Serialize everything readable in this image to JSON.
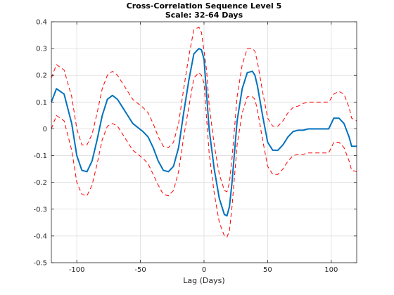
{
  "chart_data": {
    "type": "line",
    "title": "Cross-Correlation Sequence Level 5",
    "subtitle": "Scale: 32-64 Days",
    "xlabel": "Lag (Days)",
    "ylabel": "",
    "xlim": [
      -120,
      120
    ],
    "ylim": [
      -0.5,
      0.4
    ],
    "xticks": [
      -100,
      -50,
      0,
      50,
      100
    ],
    "yticks": [
      -0.5,
      -0.4,
      -0.3,
      -0.2,
      -0.1,
      0,
      0.1,
      0.2,
      0.3,
      0.4
    ],
    "xtick_labels": [
      "-100",
      "-50",
      "0",
      "50",
      "100"
    ],
    "ytick_labels": [
      "-0.5",
      "-0.4",
      "-0.3",
      "-0.2",
      "-0.1",
      "0",
      "0.1",
      "0.2",
      "0.3",
      "0.4"
    ],
    "grid": true,
    "series": [
      {
        "style": "solid",
        "color": "#0072bd",
        "x": [
          -120,
          -116,
          -110,
          -104,
          -100,
          -96,
          -92,
          -88,
          -84,
          -80,
          -76,
          -72,
          -68,
          -64,
          -60,
          -56,
          -52,
          -48,
          -44,
          -40,
          -36,
          -32,
          -28,
          -24,
          -20,
          -16,
          -12,
          -8,
          -4,
          -2,
          0,
          2,
          4,
          8,
          12,
          16,
          18,
          20,
          22,
          26,
          30,
          34,
          38,
          40,
          42,
          46,
          50,
          54,
          58,
          62,
          66,
          70,
          74,
          78,
          82,
          86,
          90,
          94,
          98,
          102,
          106,
          110,
          114,
          116,
          120
        ],
        "y": [
          0.1,
          0.15,
          0.13,
          0.02,
          -0.1,
          -0.155,
          -0.16,
          -0.12,
          -0.04,
          0.05,
          0.11,
          0.125,
          0.11,
          0.08,
          0.05,
          0.02,
          0.005,
          -0.01,
          -0.03,
          -0.07,
          -0.12,
          -0.155,
          -0.16,
          -0.14,
          -0.07,
          0.06,
          0.18,
          0.28,
          0.3,
          0.295,
          0.26,
          0.13,
          0.0,
          -0.15,
          -0.26,
          -0.32,
          -0.325,
          -0.29,
          -0.2,
          0.03,
          0.15,
          0.21,
          0.215,
          0.2,
          0.16,
          0.05,
          -0.05,
          -0.08,
          -0.08,
          -0.06,
          -0.03,
          -0.01,
          -0.005,
          -0.005,
          0.0,
          0.0,
          0.0,
          0.0,
          0.0,
          0.04,
          0.04,
          0.02,
          -0.03,
          -0.065,
          -0.065
        ]
      },
      {
        "style": "dashed",
        "color": "#ff0000",
        "x": [
          -120,
          -116,
          -110,
          -104,
          -100,
          -96,
          -92,
          -88,
          -84,
          -80,
          -76,
          -72,
          -68,
          -64,
          -60,
          -56,
          -52,
          -48,
          -44,
          -40,
          -36,
          -32,
          -28,
          -24,
          -20,
          -16,
          -12,
          -8,
          -4,
          -2,
          0,
          2,
          4,
          8,
          12,
          16,
          18,
          20,
          22,
          26,
          30,
          34,
          38,
          40,
          42,
          46,
          50,
          54,
          58,
          62,
          66,
          70,
          74,
          78,
          82,
          86,
          90,
          94,
          98,
          102,
          106,
          110,
          114,
          116,
          120
        ],
        "y": [
          0.19,
          0.24,
          0.22,
          0.12,
          0.0,
          -0.06,
          -0.06,
          -0.02,
          0.06,
          0.15,
          0.2,
          0.215,
          0.2,
          0.17,
          0.14,
          0.11,
          0.095,
          0.08,
          0.06,
          0.02,
          -0.03,
          -0.065,
          -0.07,
          -0.05,
          0.02,
          0.15,
          0.27,
          0.37,
          0.38,
          0.36,
          0.29,
          0.22,
          0.09,
          -0.06,
          -0.17,
          -0.23,
          -0.235,
          -0.2,
          -0.11,
          0.12,
          0.24,
          0.3,
          0.3,
          0.29,
          0.25,
          0.14,
          0.04,
          0.01,
          0.01,
          0.03,
          0.06,
          0.08,
          0.085,
          0.095,
          0.1,
          0.1,
          0.1,
          0.1,
          0.1,
          0.13,
          0.14,
          0.13,
          0.08,
          0.04,
          0.03
        ]
      },
      {
        "style": "dashed",
        "color": "#ff0000",
        "x": [
          -120,
          -116,
          -110,
          -104,
          -100,
          -96,
          -92,
          -88,
          -84,
          -80,
          -76,
          -72,
          -68,
          -64,
          -60,
          -56,
          -52,
          -48,
          -44,
          -40,
          -36,
          -32,
          -28,
          -24,
          -20,
          -16,
          -12,
          -8,
          -4,
          -2,
          0,
          2,
          4,
          8,
          12,
          16,
          18,
          20,
          22,
          26,
          30,
          34,
          38,
          40,
          42,
          46,
          50,
          54,
          58,
          62,
          66,
          70,
          74,
          78,
          82,
          86,
          90,
          94,
          98,
          102,
          106,
          110,
          114,
          116,
          120
        ],
        "y": [
          0.0,
          0.05,
          0.03,
          -0.08,
          -0.2,
          -0.245,
          -0.25,
          -0.21,
          -0.13,
          -0.04,
          0.01,
          0.02,
          0.01,
          -0.02,
          -0.05,
          -0.08,
          -0.095,
          -0.11,
          -0.13,
          -0.17,
          -0.21,
          -0.245,
          -0.25,
          -0.23,
          -0.16,
          -0.03,
          0.08,
          0.19,
          0.21,
          0.2,
          0.17,
          0.04,
          -0.09,
          -0.24,
          -0.35,
          -0.4,
          -0.405,
          -0.38,
          -0.29,
          -0.06,
          0.06,
          0.12,
          0.12,
          0.11,
          0.07,
          -0.04,
          -0.14,
          -0.17,
          -0.17,
          -0.15,
          -0.12,
          -0.1,
          -0.095,
          -0.095,
          -0.09,
          -0.09,
          -0.09,
          -0.09,
          -0.09,
          -0.05,
          -0.05,
          -0.07,
          -0.12,
          -0.155,
          -0.16
        ]
      }
    ]
  }
}
